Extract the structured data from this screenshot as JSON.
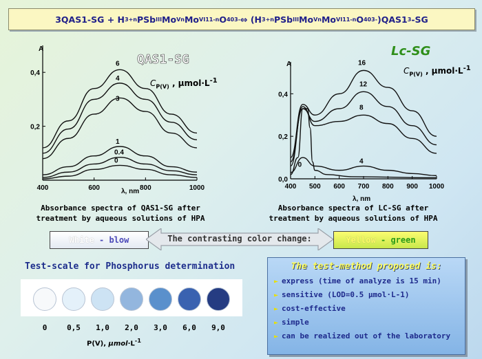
{
  "title": {
    "p1": "3QAS1-SG + H",
    "s1": "3+n",
    "p2": "PSb",
    "s2": "III",
    "p3": "Mo",
    "s3": "V",
    "s4": "n",
    "p4": "Mo",
    "s5": "VI",
    "s6": "11-n",
    "p5": "O",
    "s7": "40",
    "s8": "3-",
    "p6": " ⇔ (H",
    "s9": "3+n",
    "p7": "PSb",
    "s10": "III",
    "p8": "Mo",
    "s11": "V",
    "s12": "n",
    "p9": "Mo",
    "s13": "VI",
    "s14": "11-n",
    "p10": "O",
    "s15": "40",
    "s16": "3-",
    "p11": ")QAS1",
    "s17": "3",
    "p12": "-SG"
  },
  "chart_data": [
    {
      "type": "line",
      "title": "QAS1-SG",
      "xlabel": "λ, nm",
      "ylabel": "A",
      "xlim": [
        400,
        1000
      ],
      "ylim": [
        0,
        0.5
      ],
      "x_ticks": [
        "400",
        "600",
        "800",
        "1000"
      ],
      "y_ticks": [
        "0,2",
        "0,4"
      ],
      "concentration_label": {
        "pre": "C",
        "sub": "P(V)",
        "post": " , μmol·L"
      },
      "series": [
        {
          "name": "0",
          "points": [
            [
              400,
              0.005
            ],
            [
              500,
              0.015
            ],
            [
              600,
              0.04
            ],
            [
              700,
              0.055
            ],
            [
              800,
              0.04
            ],
            [
              900,
              0.02
            ],
            [
              1000,
              0.01
            ]
          ]
        },
        {
          "name": "0.4",
          "points": [
            [
              400,
              0.01
            ],
            [
              500,
              0.03
            ],
            [
              600,
              0.06
            ],
            [
              700,
              0.085
            ],
            [
              800,
              0.06
            ],
            [
              900,
              0.035
            ],
            [
              1000,
              0.02
            ]
          ]
        },
        {
          "name": "1",
          "points": [
            [
              400,
              0.02
            ],
            [
              500,
              0.05
            ],
            [
              600,
              0.09
            ],
            [
              700,
              0.125
            ],
            [
              800,
              0.09
            ],
            [
              900,
              0.05
            ],
            [
              1000,
              0.03
            ]
          ]
        },
        {
          "name": "3",
          "points": [
            [
              400,
              0.08
            ],
            [
              500,
              0.155
            ],
            [
              600,
              0.245
            ],
            [
              700,
              0.305
            ],
            [
              800,
              0.255
            ],
            [
              900,
              0.175
            ],
            [
              1000,
              0.12
            ]
          ]
        },
        {
          "name": "4",
          "points": [
            [
              400,
              0.1
            ],
            [
              500,
              0.19
            ],
            [
              600,
              0.3
            ],
            [
              700,
              0.36
            ],
            [
              800,
              0.3
            ],
            [
              900,
              0.215
            ],
            [
              1000,
              0.15
            ]
          ]
        },
        {
          "name": "6",
          "points": [
            [
              400,
              0.12
            ],
            [
              500,
              0.22
            ],
            [
              600,
              0.34
            ],
            [
              700,
              0.41
            ],
            [
              800,
              0.34
            ],
            [
              900,
              0.245
            ],
            [
              1000,
              0.175
            ]
          ]
        }
      ]
    },
    {
      "type": "line",
      "title": "Lc-SG",
      "xlabel": "λ, nm",
      "ylabel": "A",
      "xlim": [
        400,
        1000
      ],
      "ylim": [
        0,
        0.55
      ],
      "x_ticks": [
        "400",
        "500",
        "600",
        "700",
        "800",
        "900",
        "1000"
      ],
      "y_ticks": [
        "0,0",
        "0,2",
        "0,4"
      ],
      "concentration_label": {
        "pre": "C",
        "sub": "P(V)",
        "post": " , μmol·L"
      },
      "series": [
        {
          "name": "0",
          "points": [
            [
              400,
              0.02
            ],
            [
              430,
              0.1
            ],
            [
              450,
              0.33
            ],
            [
              470,
              0.33
            ],
            [
              480,
              0.24
            ],
            [
              490,
              0.08
            ],
            [
              500,
              0.04
            ],
            [
              550,
              0.02
            ],
            [
              650,
              0.01
            ],
            [
              1000,
              0.005
            ]
          ]
        },
        {
          "name": "4",
          "points": [
            [
              400,
              0.03
            ],
            [
              450,
              0.1
            ],
            [
              500,
              0.06
            ],
            [
              600,
              0.04
            ],
            [
              700,
              0.06
            ],
            [
              800,
              0.04
            ],
            [
              900,
              0.025
            ],
            [
              1000,
              0.015
            ]
          ]
        },
        {
          "name": "8",
          "points": [
            [
              400,
              0.06
            ],
            [
              450,
              0.34
            ],
            [
              500,
              0.25
            ],
            [
              600,
              0.27
            ],
            [
              700,
              0.3
            ],
            [
              800,
              0.26
            ],
            [
              900,
              0.19
            ],
            [
              1000,
              0.12
            ]
          ]
        },
        {
          "name": "12",
          "points": [
            [
              400,
              0.08
            ],
            [
              450,
              0.33
            ],
            [
              500,
              0.27
            ],
            [
              600,
              0.33
            ],
            [
              700,
              0.41
            ],
            [
              800,
              0.34
            ],
            [
              900,
              0.25
            ],
            [
              1000,
              0.16
            ]
          ]
        },
        {
          "name": "16",
          "points": [
            [
              400,
              0.1
            ],
            [
              450,
              0.35
            ],
            [
              500,
              0.3
            ],
            [
              600,
              0.4
            ],
            [
              700,
              0.51
            ],
            [
              800,
              0.43
            ],
            [
              900,
              0.32
            ],
            [
              1000,
              0.2
            ]
          ]
        }
      ]
    }
  ],
  "captions": {
    "left": "Absorbance spectra of QAS1-SG after\ntreatment by aqueous solutions of HPA",
    "right": "Absorbance spectra of LC-SG after\ntreatment by aqueous solutions of HPA"
  },
  "color_change": {
    "left_a": "White",
    "left_sep": " - ",
    "left_b": "blow",
    "middle": "The contrasting color change:",
    "right_a": "Yellow",
    "right_sep": " - ",
    "right_b": "green"
  },
  "test_scale": {
    "title": "Test-scale for Phosphorus determination",
    "unit_pre": "P(V), ",
    "unit_italic": "μmol",
    "unit_post": "·L",
    "unit_sup": "-1",
    "swatches": [
      {
        "label": "0",
        "color": "#f7f9fb"
      },
      {
        "label": "0,5",
        "color": "#e4f1fa"
      },
      {
        "label": "1,0",
        "color": "#cde3f4"
      },
      {
        "label": "2,0",
        "color": "#93b6de"
      },
      {
        "label": "3,0",
        "color": "#5a90cc"
      },
      {
        "label": "6,0",
        "color": "#3a62b0"
      },
      {
        "label": "9,0",
        "color": "#253c82"
      }
    ]
  },
  "method": {
    "title": "The test-method proposed is:",
    "items": [
      "express (time of analyze is 15 min)",
      "sensitive (LOD=0.5 μmol·L-1)",
      "cost-effective",
      "simple",
      "can be realized out of the laboratory"
    ]
  },
  "colors": {
    "white_label": "#ffffff",
    "blow_label": "#4a48b8",
    "yellow_label": "#ffff60",
    "green_label": "#2a9a18"
  }
}
